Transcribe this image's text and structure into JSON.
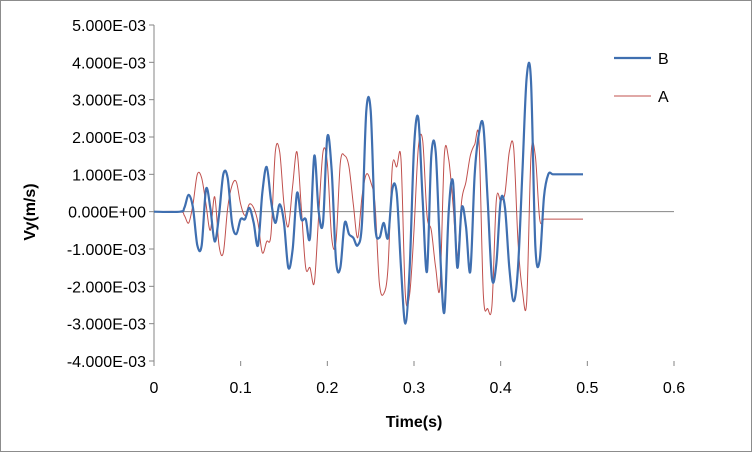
{
  "colors": {
    "series_b": "#3f6fb0",
    "series_a": "#c0504d",
    "axis": "#868686"
  },
  "chart_data": {
    "type": "line",
    "title": "",
    "xlabel": "Time(s)",
    "ylabel": "Vy(m/s)",
    "xlim": [
      0,
      0.6
    ],
    "ylim": [
      -0.004,
      0.005
    ],
    "x_ticks": [
      0,
      0.1,
      0.2,
      0.3,
      0.4,
      0.5,
      0.6
    ],
    "x_tick_labels": [
      "0",
      "0.1",
      "0.2",
      "0.3",
      "0.4",
      "0.5",
      "0.6"
    ],
    "y_ticks": [
      0.005,
      0.004,
      0.003,
      0.002,
      0.001,
      0,
      -0.001,
      -0.002,
      -0.003,
      -0.004
    ],
    "y_tick_labels": [
      "5.000E-03",
      "4.000E-03",
      "3.000E-03",
      "2.000E-03",
      "1.000E-03",
      "0.000E+00",
      "-1.000E-03",
      "-2.000E-03",
      "-3.000E-03",
      "-4.000E-03"
    ],
    "grid": false,
    "legend_position": "right",
    "series": [
      {
        "name": "B",
        "color": "#3f6fb0",
        "x": [
          0,
          0.03,
          0.035,
          0.04,
          0.045,
          0.05,
          0.055,
          0.06,
          0.065,
          0.07,
          0.075,
          0.08,
          0.085,
          0.09,
          0.095,
          0.1,
          0.105,
          0.11,
          0.115,
          0.12,
          0.125,
          0.13,
          0.135,
          0.14,
          0.145,
          0.15,
          0.155,
          0.16,
          0.165,
          0.17,
          0.175,
          0.18,
          0.185,
          0.19,
          0.195,
          0.2,
          0.205,
          0.21,
          0.215,
          0.22,
          0.225,
          0.23,
          0.235,
          0.24,
          0.245,
          0.25,
          0.255,
          0.26,
          0.265,
          0.27,
          0.275,
          0.28,
          0.285,
          0.29,
          0.295,
          0.3,
          0.305,
          0.31,
          0.315,
          0.32,
          0.325,
          0.33,
          0.335,
          0.34,
          0.345,
          0.35,
          0.355,
          0.36,
          0.365,
          0.37,
          0.375,
          0.38,
          0.385,
          0.39,
          0.395,
          0.4,
          0.405,
          0.41,
          0.415,
          0.42,
          0.425,
          0.43,
          0.435,
          0.44,
          0.445,
          0.45,
          0.455,
          0.46,
          0.465,
          0.47,
          0.475,
          0.48,
          0.485,
          0.49,
          0.495
        ],
        "y": [
          0,
          0,
          0.0001,
          0.00045,
          0.0001,
          -0.0009,
          -0.0009,
          0.0006,
          0.0001,
          -0.0008,
          -0.0001,
          0.001,
          0.0009,
          -0.0003,
          -0.0006,
          -0.0002,
          -0.0002,
          0.0001,
          -0.0003,
          -0.0009,
          0.0005,
          0.0012,
          0.0003,
          -0.0003,
          0.0002,
          -0.0003,
          -0.0015,
          -0.001,
          0.0005,
          -0.0002,
          -0.0002,
          -0.0007,
          0.0015,
          0,
          -0.0003,
          0.002,
          0.0011,
          -0.0013,
          -0.0015,
          -0.0003,
          -0.0006,
          -0.0007,
          -0.0009,
          -0.0003,
          0.0027,
          0.0027,
          -0.0003,
          -0.0007,
          -0.0003,
          -0.0007,
          0.0006,
          0.0005,
          -0.0015,
          -0.003,
          -0.0015,
          0.0017,
          0.0025,
          0.0003,
          -0.0016,
          0.0015,
          0.0016,
          -0.001,
          -0.0027,
          0,
          0.0008,
          -0.0015,
          0.0001,
          -0.0004,
          -0.0016,
          0.001,
          0.0021,
          0.0023,
          0.0003,
          -0.0018,
          -0.0014,
          0.0003,
          0.0001,
          -0.0015,
          -0.0024,
          -0.0015,
          0.001,
          0.0036,
          0.0035,
          -0.0009,
          -0.0013,
          0.0004,
          0.001,
          0.001,
          0.001,
          0.001,
          0.001,
          0.001,
          0.001,
          0.001,
          0.001
        ]
      },
      {
        "name": "A",
        "color": "#c0504d",
        "x": [
          0,
          0.03,
          0.035,
          0.04,
          0.045,
          0.05,
          0.055,
          0.06,
          0.065,
          0.07,
          0.075,
          0.08,
          0.085,
          0.09,
          0.095,
          0.1,
          0.105,
          0.11,
          0.115,
          0.12,
          0.125,
          0.13,
          0.135,
          0.14,
          0.145,
          0.15,
          0.155,
          0.16,
          0.165,
          0.17,
          0.175,
          0.18,
          0.185,
          0.19,
          0.195,
          0.2,
          0.205,
          0.21,
          0.215,
          0.22,
          0.225,
          0.23,
          0.235,
          0.24,
          0.245,
          0.25,
          0.255,
          0.26,
          0.265,
          0.27,
          0.275,
          0.28,
          0.285,
          0.29,
          0.295,
          0.3,
          0.305,
          0.31,
          0.315,
          0.32,
          0.325,
          0.33,
          0.335,
          0.34,
          0.345,
          0.35,
          0.355,
          0.36,
          0.365,
          0.37,
          0.375,
          0.38,
          0.385,
          0.39,
          0.395,
          0.4,
          0.405,
          0.41,
          0.415,
          0.42,
          0.425,
          0.43,
          0.435,
          0.44,
          0.445,
          0.45,
          0.455,
          0.46,
          0.465,
          0.47,
          0.475,
          0.48,
          0.485,
          0.49,
          0.495
        ],
        "y": [
          0,
          0,
          -0.0001,
          -0.0003,
          0.0002,
          0.001,
          0.0009,
          0.0002,
          -0.0005,
          0.0004,
          -0.0009,
          -0.0011,
          0.0001,
          0.0007,
          0.0008,
          0.0002,
          -0.0001,
          0.0002,
          0.0001,
          -0.0003,
          -0.0011,
          -0.0008,
          -0.0006,
          0.0016,
          0.0016,
          0.0002,
          -0.0004,
          0.0007,
          0.0016,
          0.0001,
          -0.0015,
          -0.0015,
          -0.0019,
          -0.0001,
          0.0016,
          0.0013,
          -0.0007,
          -0.0008,
          0.0013,
          0.0015,
          0.0012,
          0.0002,
          -0.0007,
          0.0004,
          0.001,
          0.0008,
          0.0002,
          -0.0019,
          -0.0022,
          -0.0015,
          0.0012,
          0.0012,
          0.0014,
          -0.0022,
          -0.0022,
          -0.0005,
          0.0017,
          0.0019,
          -0.0001,
          -0.0005,
          -0.0015,
          -0.002,
          0.0015,
          0.0014,
          0.0002,
          -0.0012,
          0.0003,
          0.0008,
          0.0015,
          0.0018,
          0.0019,
          -0.0022,
          -0.0026,
          -0.0025,
          0.0003,
          0.0003,
          0.0005,
          0.0016,
          0.0017,
          -0.0008,
          -0.0021,
          -0.0024,
          0.0015,
          0.0015,
          -0.0002,
          -0.0002,
          -0.0002,
          -0.0002,
          -0.0002,
          -0.0002,
          -0.0002,
          -0.0002,
          -0.0002,
          -0.0002,
          -0.0002
        ]
      }
    ]
  }
}
